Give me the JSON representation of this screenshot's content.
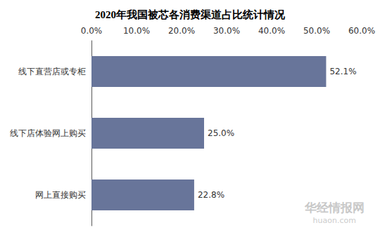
{
  "chart_data": {
    "type": "bar",
    "title": "2020年我国被芯各消费渠道占比统计情况",
    "orientation": "horizontal",
    "categories": [
      "线下直营店或专柜",
      "线下店体验网上购买",
      "网上直接购买"
    ],
    "values": [
      52.1,
      25.0,
      22.8
    ],
    "value_labels": [
      "52.1%",
      "25.0%",
      "22.8%"
    ],
    "data_labels": true,
    "color": "#68759a",
    "xlim": [
      0,
      60
    ],
    "xticks": [
      {
        "value": 0,
        "label": "0.0%"
      },
      {
        "value": 10,
        "label": "10.0%"
      },
      {
        "value": 20,
        "label": "20.0%"
      },
      {
        "value": 30,
        "label": "30.0%"
      },
      {
        "value": 40,
        "label": "40.0%"
      },
      {
        "value": 50,
        "label": "50.0%"
      },
      {
        "value": 60,
        "label": "60.0%"
      }
    ],
    "grid": false,
    "annotations": [
      "华经情报网",
      "huaon.com"
    ]
  }
}
